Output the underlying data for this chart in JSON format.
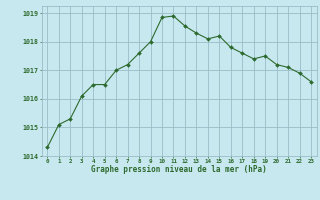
{
  "x": [
    0,
    1,
    2,
    3,
    4,
    5,
    6,
    7,
    8,
    9,
    10,
    11,
    12,
    13,
    14,
    15,
    16,
    17,
    18,
    19,
    20,
    21,
    22,
    23
  ],
  "y": [
    1014.3,
    1015.1,
    1015.3,
    1016.1,
    1016.5,
    1016.5,
    1017.0,
    1017.2,
    1017.6,
    1018.0,
    1018.85,
    1018.9,
    1018.55,
    1018.3,
    1018.1,
    1018.2,
    1017.8,
    1017.6,
    1017.4,
    1017.5,
    1017.2,
    1017.1,
    1016.9,
    1016.6
  ],
  "line_color": "#2d6a2d",
  "marker_color": "#2d6a2d",
  "bg_color": "#c8e8f0",
  "grid_color": "#9abcc8",
  "xlabel": "Graphe pression niveau de la mer (hPa)",
  "xlabel_color": "#2d6a2d",
  "tick_color": "#2d6a2d",
  "ylim": [
    1014.0,
    1019.25
  ],
  "xlim": [
    -0.5,
    23.5
  ],
  "yticks": [
    1014,
    1015,
    1016,
    1017,
    1018,
    1019
  ],
  "xticks": [
    0,
    1,
    2,
    3,
    4,
    5,
    6,
    7,
    8,
    9,
    10,
    11,
    12,
    13,
    14,
    15,
    16,
    17,
    18,
    19,
    20,
    21,
    22,
    23
  ]
}
